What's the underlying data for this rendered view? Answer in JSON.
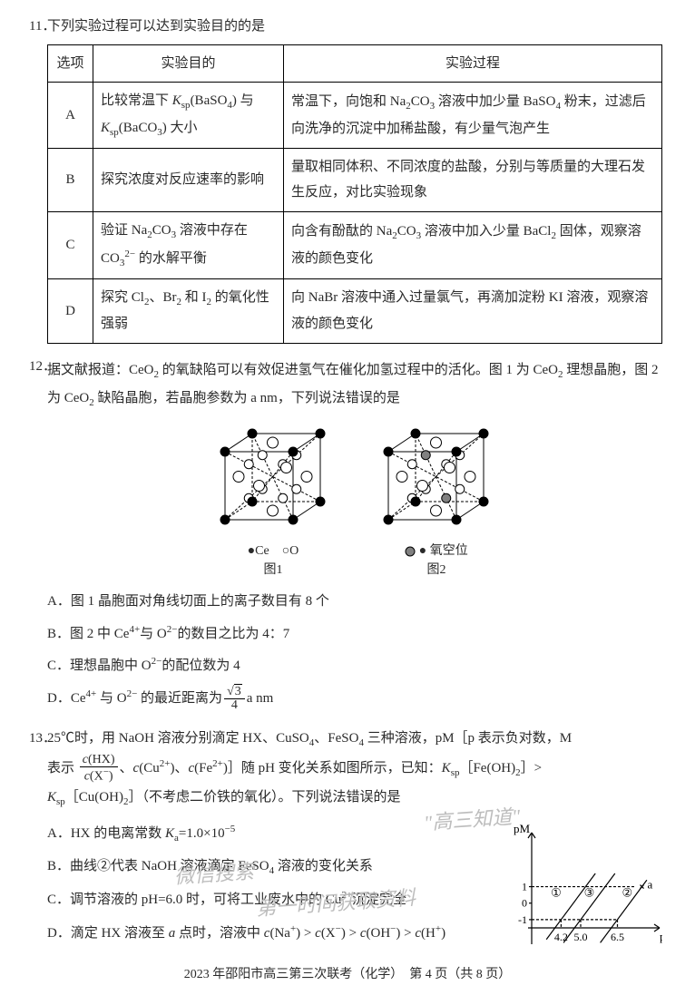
{
  "q11": {
    "number": "11．",
    "stem": "下列实验过程可以达到实验目的的是",
    "headers": [
      "选项",
      "实验目的",
      "实验过程"
    ],
    "rows": [
      {
        "opt": "A",
        "purpose_html": "比较常温下 <i>K</i><span class='sub'>sp</span>(BaSO<span class='sub'>4</span>) 与 <i>K</i><span class='sub'>sp</span>(BaCO<span class='sub'>3</span>) 大小",
        "process_html": "常温下，向饱和 Na<span class='sub'>2</span>CO<span class='sub'>3</span> 溶液中加少量 BaSO<span class='sub'>4</span> 粉末，过滤后向洗净的沉淀中加稀盐酸，有少量气泡产生"
      },
      {
        "opt": "B",
        "purpose_html": "探究浓度对反应速率的影响",
        "process_html": "量取相同体积、不同浓度的盐酸，分别与等质量的大理石发生反应，对比实验现象"
      },
      {
        "opt": "C",
        "purpose_html": "验证 Na<span class='sub'>2</span>CO<span class='sub'>3</span> 溶液中存在 CO<span class='sub'>3</span><span class='sup'>2−</span> 的水解平衡",
        "process_html": "向含有酚酞的 Na<span class='sub'>2</span>CO<span class='sub'>3</span> 溶液中加入少量 BaCl<span class='sub'>2</span> 固体，观察溶液的颜色变化"
      },
      {
        "opt": "D",
        "purpose_html": "探究 Cl<span class='sub'>2</span>、Br<span class='sub'>2</span> 和 I<span class='sub'>2</span> 的氧化性强弱",
        "process_html": "向 NaBr 溶液中通入过量氯气，再滴加淀粉 KI 溶液，观察溶液的颜色变化"
      }
    ]
  },
  "q12": {
    "number": "12．",
    "stem_html": "据文献报道：CeO<span class='sub'>2</span> 的氧缺陷可以有效促进氢气在催化加氢过程中的活化。图 1 为 CeO<span class='sub'>2</span> 理想晶胞，图 2 为 CeO<span class='sub'>2</span> 缺陷晶胞，若晶胞参数为 a nm，下列说法错误的是",
    "legend1_ce": "●Ce",
    "legend1_o": "○O",
    "fig1_label": "图1",
    "legend2": "● 氧空位",
    "fig2_label": "图2",
    "cube": {
      "corner_color": "#000000",
      "face_color": "#ffffff",
      "inner_color": "#ffffff",
      "vac_color": "#808080",
      "edge_color": "#000000",
      "dash": "3,2",
      "side": 105
    },
    "options": {
      "A": "图 1 晶胞面对角线切面上的离子数目有 8 个",
      "B_html": "图 2 中 Ce<span class='sup'>4+</span>与 O<span class='sup'>2−</span>的数目之比为 4：7",
      "C_html": "理想晶胞中 O<span class='sup'>2−</span>的配位数为 4",
      "D_html": "Ce<span class='sup'>4+</span> 与 O<span class='sup'>2−</span> 的最近距离为<span class='frac'><span class='top'><span class='sqrt'></span><span class='sqrt-line'>3</span></span><span class='bot'>4</span></span>a nm"
    }
  },
  "q13": {
    "number": "13．",
    "stem_part1_html": "25℃时，用 NaOH 溶液分别滴定 HX、CuSO<span class='sub'>4</span>、FeSO<span class='sub'>4</span> 三种溶液，pM［p 表示负对数，M",
    "stem_part2_html": "表示 <span class='frac'><span class='top'><i>c</i>(HX)</span><span class='bot'><i>c</i>(X<span class='sup'>−</span>)</span></span>、<i>c</i>(Cu<span class='sup'>2+</span>)、<i>c</i>(Fe<span class='sup'>2+</span>)］随 pH 变化关系如图所示，已知：<i>K</i><span class='sub'>sp</span>［Fe(OH)<span class='sub'>2</span>］>",
    "stem_part3_html": "<i>K</i><span class='sub'>sp</span>［Cu(OH)<span class='sub'>2</span>］（不考虑二价铁的氧化）。下列说法错误的是",
    "options": {
      "A_html": "HX 的电离常数 <i>K</i><span class='sub'>a</span>=1.0×10<span class='sup'>−5</span>",
      "B_html": "曲线②代表 NaOH 溶液滴定 FeSO<span class='sub'>4</span> 溶液的变化关系",
      "C_html": "调节溶液的 pH=6.0 时，可将工业废水中的 Cu<span class='sup'>2+</span>沉淀完全",
      "D_html": "滴定 HX 溶液至 <i>a</i> 点时，溶液中 <i>c</i>(Na<span class='sup'>+</span>) > <i>c</i>(X<span class='sup'>−</span>) > <i>c</i>(OH<span class='sup'>−</span>) > <i>c</i>(H<span class='sup'>+</span>)"
    },
    "chart": {
      "width": 160,
      "height": 150,
      "axis_color": "#000000",
      "line_color": "#000000",
      "y_label": "pM",
      "x_label": "pH",
      "y_ticks": [
        {
          "v": 1,
          "label": "1"
        },
        {
          "v": 0,
          "label": "0"
        },
        {
          "v": -1,
          "label": "-1"
        }
      ],
      "x_ticks": [
        {
          "v": 4.2,
          "label": "4.2"
        },
        {
          "v": 5.0,
          "label": "5.0"
        },
        {
          "v": 6.5,
          "label": "6.5"
        }
      ],
      "a_label": "a",
      "circ": [
        "①",
        "③",
        "②"
      ]
    }
  },
  "watermarks": {
    "w1": "微信搜索",
    "w2": "\"高三知道\"",
    "w3": "第一时间获取资料"
  },
  "footer": "2023 年邵阳市高三第三次联考（化学）　第 4 页（共 8 页）"
}
